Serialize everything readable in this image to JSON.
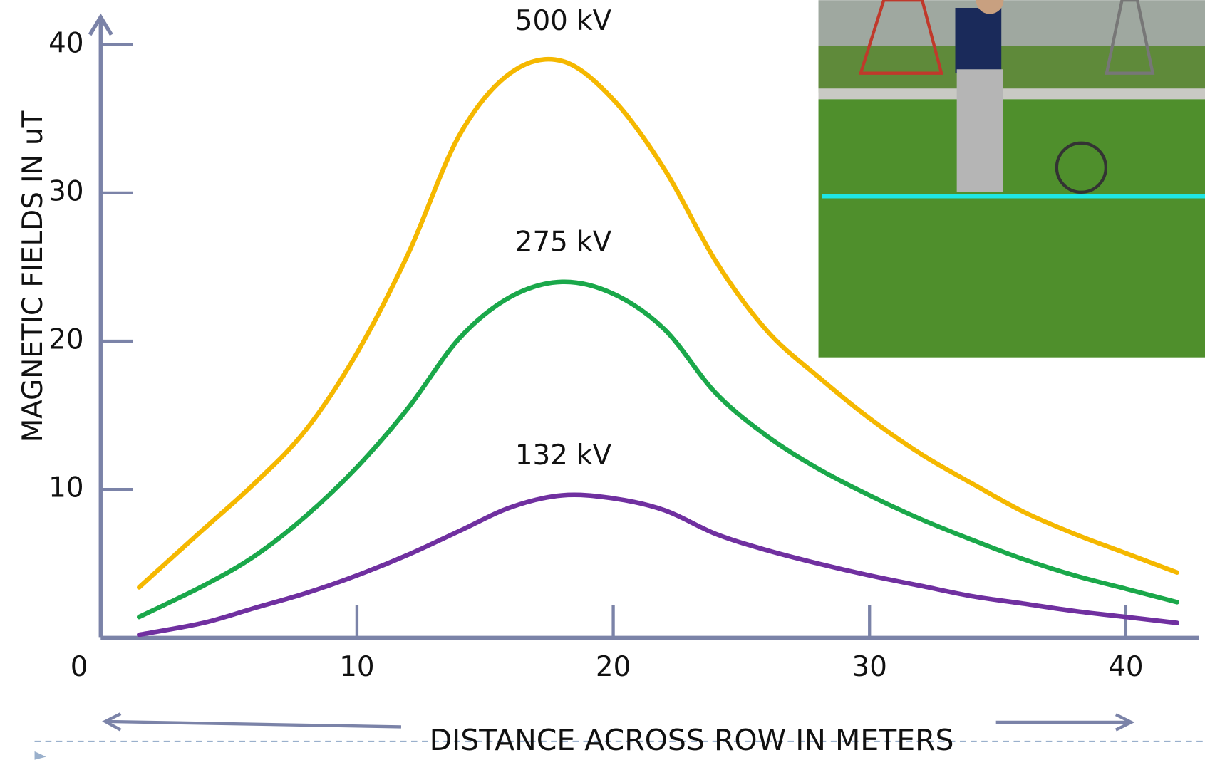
{
  "chart_data": {
    "type": "line",
    "x_label": "DISTANCE ACROSS ROW IN METERS",
    "y_label": "MAGNETIC FIELDS IN uT",
    "xlim": [
      0,
      43
    ],
    "ylim": [
      0,
      40
    ],
    "xticks": [
      0,
      10,
      20,
      30,
      40
    ],
    "yticks": [
      10,
      20,
      30,
      40
    ],
    "x": [
      1.5,
      4,
      6,
      8,
      10,
      12,
      14,
      16,
      18,
      20,
      22,
      24,
      26,
      28,
      30,
      32,
      34,
      36,
      38,
      40,
      42
    ],
    "series": [
      {
        "name": "500 kV",
        "color": "#f5b800",
        "values": [
          3.4,
          7.3,
          10.4,
          14.0,
          19.2,
          25.9,
          33.9,
          38.1,
          38.9,
          36.3,
          31.6,
          25.4,
          20.7,
          17.6,
          14.8,
          12.4,
          10.4,
          8.5,
          7.0,
          5.7,
          4.4
        ]
      },
      {
        "name": "275 kV",
        "color": "#1aa84a",
        "values": [
          1.4,
          3.5,
          5.5,
          8.2,
          11.5,
          15.5,
          20.2,
          23.0,
          24.0,
          23.2,
          20.8,
          16.5,
          13.6,
          11.4,
          9.6,
          8.0,
          6.6,
          5.3,
          4.2,
          3.3,
          2.4
        ]
      },
      {
        "name": "132 kV",
        "color": "#7030a0",
        "values": [
          0.2,
          1.0,
          2.0,
          3.0,
          4.2,
          5.6,
          7.2,
          8.8,
          9.6,
          9.4,
          8.6,
          7.0,
          5.9,
          5.0,
          4.2,
          3.5,
          2.8,
          2.3,
          1.8,
          1.4,
          1.0
        ]
      }
    ]
  }
}
